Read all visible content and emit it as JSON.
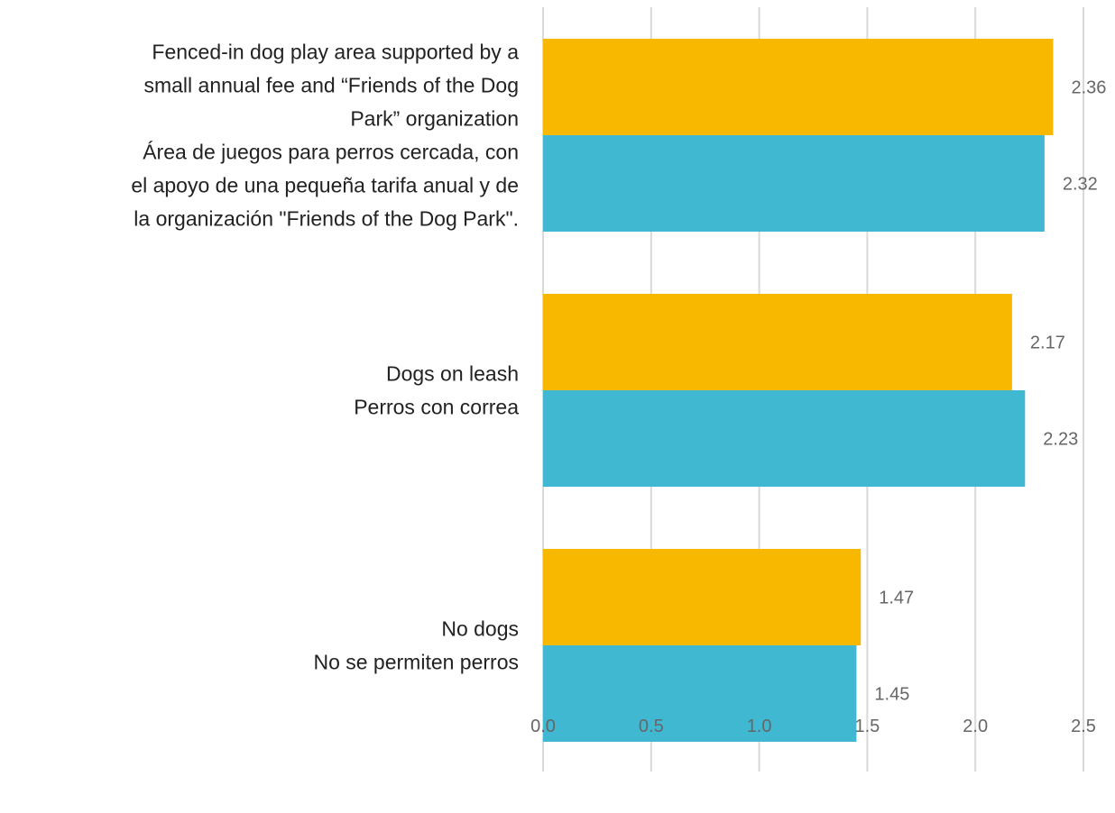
{
  "chart_data": {
    "type": "bar",
    "orientation": "horizontal",
    "categories": [
      [
        "Fenced-in dog play area supported by a",
        "small annual fee and “Friends of the Dog",
        "Park” organization",
        "Área de juegos para perros cercada, con",
        "el apoyo de una pequeña tarifa anual y de",
        "la organización \"Friends of the Dog Park\"."
      ],
      [
        "Dogs on leash",
        "Perros con correa"
      ],
      [
        "No dogs",
        "No se permiten perros"
      ]
    ],
    "series": [
      {
        "color": "#F9B800",
        "values": [
          2.36,
          2.17,
          1.47
        ]
      },
      {
        "color": "#41B8D2",
        "values": [
          2.32,
          2.23,
          1.45
        ]
      }
    ],
    "data_labels": [
      [
        "2.36",
        "2.17",
        "1.47"
      ],
      [
        "2.32",
        "2.23",
        "1.45"
      ]
    ],
    "xlim": [
      0,
      2.5
    ],
    "x_ticks": [
      "0.0",
      "0.5",
      "1.0",
      "1.5",
      "2.0",
      "2.5"
    ],
    "x_tick_values": [
      0,
      0.5,
      1.0,
      1.5,
      2.0,
      2.5
    ],
    "grid": true,
    "gridline_color": "#D9D9D9",
    "legend": "none",
    "title": "",
    "xlabel": "",
    "ylabel": ""
  }
}
